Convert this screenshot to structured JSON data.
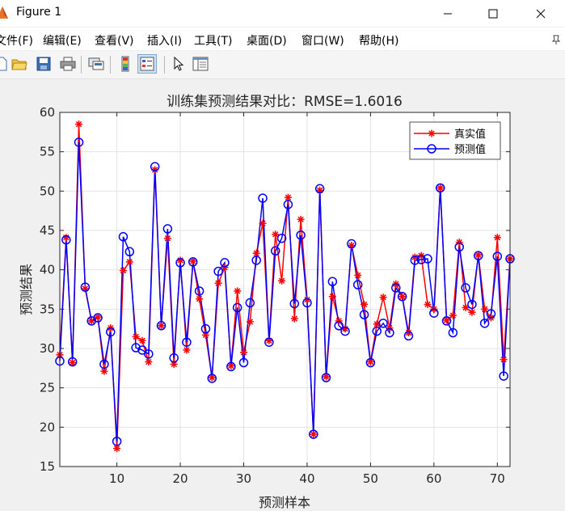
{
  "window": {
    "title": "Figure 1"
  },
  "menu": [
    {
      "label": "文件(F)",
      "name": "menu-file"
    },
    {
      "label": "编辑(E)",
      "name": "menu-edit"
    },
    {
      "label": "查看(V)",
      "name": "menu-view"
    },
    {
      "label": "插入(I)",
      "name": "menu-insert"
    },
    {
      "label": "工具(T)",
      "name": "menu-tools"
    },
    {
      "label": "桌面(D)",
      "name": "menu-desktop"
    },
    {
      "label": "窗口(W)",
      "name": "menu-window"
    },
    {
      "label": "帮助(H)",
      "name": "menu-help"
    }
  ],
  "toolbar": [
    {
      "icon": "new-figure-icon"
    },
    {
      "icon": "open-file-icon"
    },
    {
      "icon": "save-icon"
    },
    {
      "icon": "print-icon"
    },
    {
      "icon": "link-plot-icon"
    },
    {
      "icon": "insert-colorbar-icon"
    },
    {
      "icon": "insert-legend-icon"
    },
    {
      "icon": "pointer-icon"
    },
    {
      "icon": "property-inspector-icon"
    }
  ],
  "chart_data": {
    "type": "line",
    "title": "训练集预测结果对比：RMSE=1.6016",
    "xlabel": "预测样本",
    "ylabel": "预测结果",
    "xlim": [
      1,
      72
    ],
    "ylim": [
      15,
      60
    ],
    "xticks": [
      10,
      20,
      30,
      40,
      50,
      60,
      70
    ],
    "yticks": [
      15,
      20,
      25,
      30,
      35,
      40,
      45,
      50,
      55,
      60
    ],
    "grid": true,
    "legend_position": "top-right",
    "series": [
      {
        "name": "真实值",
        "color": "#ff0000",
        "marker": "asterisk",
        "values": [
          29.2,
          44.1,
          28.2,
          58.5,
          37.6,
          33.5,
          34.0,
          27.1,
          32.6,
          17.3,
          39.9,
          41.0,
          31.5,
          31.0,
          28.3,
          52.7,
          32.9,
          44.0,
          28.0,
          41.2,
          29.8,
          41.1,
          36.3,
          31.7,
          26.3,
          38.3,
          40.3,
          27.8,
          37.3,
          29.5,
          33.4,
          42.1,
          45.9,
          31.0,
          44.5,
          38.6,
          49.2,
          33.8,
          46.4,
          36.2,
          19.1,
          50.1,
          26.4,
          36.6,
          33.5,
          32.5,
          43.1,
          39.3,
          35.6,
          28.3,
          33.1,
          36.5,
          32.6,
          38.2,
          36.6,
          32.0,
          41.6,
          41.8,
          35.6,
          35.0,
          50.4,
          33.6,
          34.2,
          43.5,
          35.2,
          34.6,
          41.9,
          35.0,
          33.9,
          44.1,
          28.6,
          41.4
        ]
      },
      {
        "name": "预测值",
        "color": "#0000ff",
        "marker": "circle",
        "values": [
          28.4,
          43.8,
          28.3,
          56.2,
          37.8,
          33.5,
          33.9,
          28.0,
          32.1,
          18.2,
          44.2,
          42.3,
          30.1,
          29.8,
          29.3,
          53.1,
          32.9,
          45.2,
          28.8,
          40.9,
          30.8,
          41.0,
          37.3,
          32.5,
          26.2,
          39.8,
          40.9,
          27.7,
          35.2,
          28.2,
          35.8,
          41.2,
          49.1,
          30.8,
          42.4,
          44.0,
          48.3,
          35.7,
          44.4,
          35.8,
          19.1,
          50.3,
          26.3,
          38.5,
          32.9,
          32.2,
          43.3,
          38.1,
          34.3,
          28.2,
          32.2,
          33.2,
          32.0,
          37.7,
          36.6,
          31.6,
          41.2,
          41.3,
          41.4,
          34.5,
          50.4,
          33.5,
          32.0,
          42.9,
          37.7,
          35.6,
          41.8,
          33.2,
          34.4,
          41.7,
          26.5,
          41.4
        ]
      }
    ]
  }
}
